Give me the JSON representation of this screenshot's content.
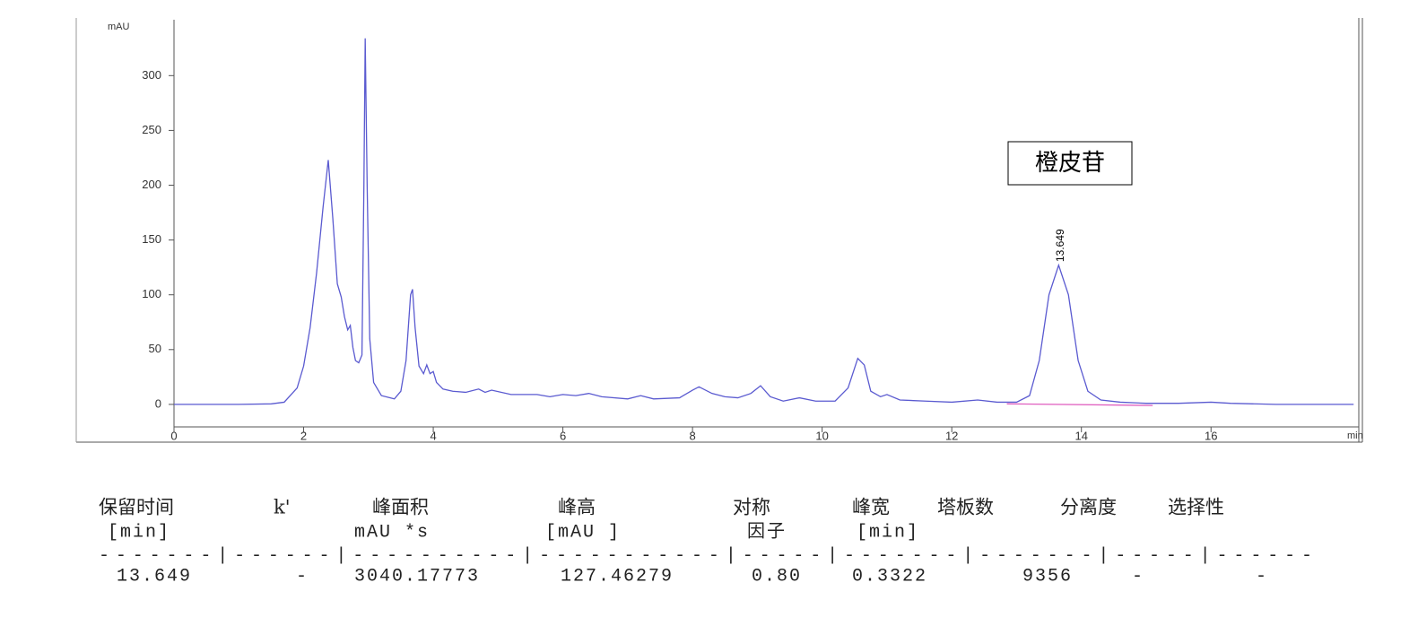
{
  "chart_data": {
    "type": "line",
    "y_label": "mAU",
    "x_label": "min",
    "x": [
      0,
      1,
      1.5,
      1.7,
      1.9,
      2.0,
      2.1,
      2.2,
      2.3,
      2.38,
      2.45,
      2.52,
      2.58,
      2.63,
      2.68,
      2.72,
      2.76,
      2.8,
      2.85,
      2.9,
      2.93,
      2.95,
      2.98,
      3.02,
      3.08,
      3.2,
      3.4,
      3.5,
      3.58,
      3.65,
      3.68,
      3.72,
      3.78,
      3.85,
      3.9,
      3.95,
      4.0,
      4.05,
      4.15,
      4.3,
      4.5,
      4.7,
      4.8,
      4.9,
      5.2,
      5.6,
      5.8,
      6.0,
      6.2,
      6.4,
      6.6,
      7.0,
      7.2,
      7.4,
      7.8,
      8.0,
      8.1,
      8.3,
      8.5,
      8.7,
      8.9,
      9.05,
      9.2,
      9.4,
      9.65,
      9.9,
      10.2,
      10.4,
      10.55,
      10.65,
      10.75,
      10.9,
      11.0,
      11.2,
      11.6,
      12.0,
      12.4,
      12.7,
      13.0,
      13.2,
      13.35,
      13.5,
      13.649,
      13.8,
      13.95,
      14.1,
      14.3,
      14.6,
      15.0,
      15.5,
      16.0,
      16.3,
      17,
      18.2
    ],
    "series": [
      {
        "color": "#5a5ad0",
        "values": [
          0,
          0,
          0.5,
          2,
          15,
          35,
          70,
          120,
          180,
          223,
          170,
          110,
          98,
          80,
          68,
          72,
          52,
          40,
          38,
          45,
          200,
          334,
          200,
          60,
          20,
          8,
          5,
          12,
          40,
          100,
          105,
          70,
          35,
          28,
          36,
          28,
          30,
          20,
          14,
          12,
          11,
          14,
          11,
          13,
          9,
          9,
          7,
          9,
          8,
          10,
          7,
          5,
          8,
          5,
          6,
          13,
          16,
          10,
          7,
          6,
          10,
          17,
          7,
          3,
          6,
          3,
          3,
          15,
          42,
          36,
          12,
          7,
          9,
          4,
          3,
          2,
          4,
          2,
          2,
          8,
          40,
          100,
          127,
          100,
          40,
          12,
          4,
          2,
          1,
          1,
          2,
          1,
          0,
          0
        ]
      }
    ],
    "baseline": {
      "color": "#e060c0",
      "x": [
        12.85,
        15.1
      ],
      "values": [
        0.5,
        -1
      ]
    },
    "xlim": [
      0,
      18.28
    ],
    "xticks": [
      0,
      2,
      4,
      6,
      8,
      10,
      12,
      14,
      16
    ],
    "ylim": [
      -32,
      351
    ],
    "yticks": [
      0,
      50,
      100,
      150,
      200,
      250,
      300
    ],
    "annotations": {
      "compound": "橙皮苷",
      "peak_label": "13.649"
    }
  },
  "table": {
    "headers": [
      [
        "保留时间",
        "[min]"
      ],
      [
        "k'"
      ],
      [
        "峰面积",
        "mAU    *s"
      ],
      [
        "峰高",
        "[mAU    ]"
      ],
      [
        "对称",
        "因子"
      ],
      [
        "峰宽",
        "[min]"
      ],
      [
        "塔板数"
      ],
      [
        "分离度"
      ],
      [
        "选择性"
      ]
    ],
    "separator": "-------|------|----------|-----------|-----|-------|-------|-----|------",
    "rows": [
      [
        "13.649",
        "-",
        "3040.17773",
        "127.46279",
        "0.80",
        "0.3322",
        "9356",
        "-",
        "-"
      ]
    ]
  }
}
